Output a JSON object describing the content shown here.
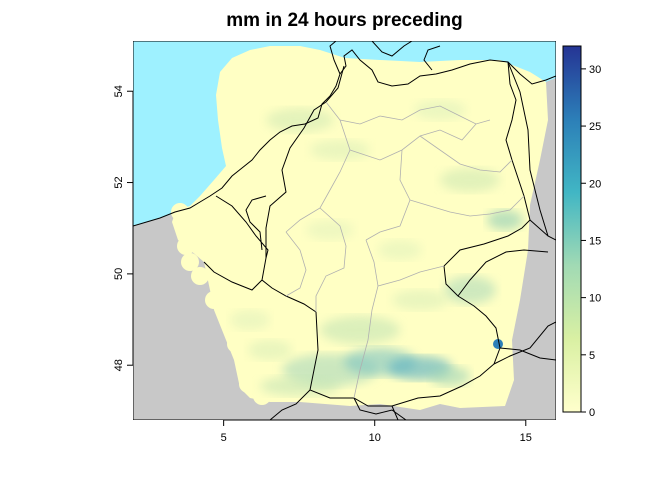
{
  "map": {
    "title": "mm in 24 hours preceding",
    "x_axis": {
      "min": 2,
      "max": 16,
      "ticks": [
        5,
        10,
        15
      ]
    },
    "y_axis": {
      "min": 46.8,
      "max": 55.1,
      "ticks": [
        48,
        50,
        52,
        54
      ]
    },
    "colorbar": {
      "min": 0,
      "max": 32,
      "ticks": [
        0,
        5,
        10,
        15,
        20,
        25,
        30
      ],
      "colors": [
        "#ffffcc",
        "#d9f0a3",
        "#a1dab4",
        "#41b6c4",
        "#2c7fb8",
        "#253494"
      ]
    },
    "colors": {
      "sea": "#9ef1ff",
      "land_outside": "#c8c8c8",
      "precip_base": "#ffffc4"
    }
  }
}
